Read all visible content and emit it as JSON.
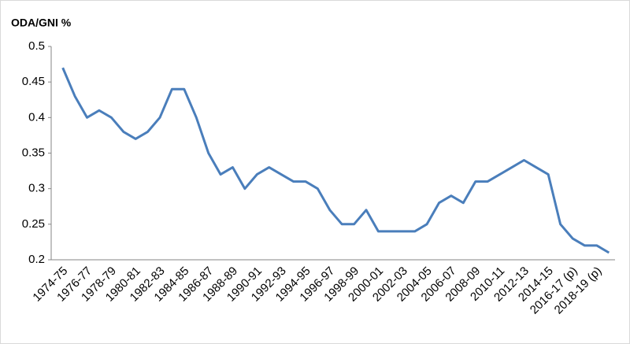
{
  "chart_data": {
    "type": "line",
    "title": "ODA/GNI %",
    "categories": [
      "1974-75",
      null,
      "1976-77",
      null,
      "1978-79",
      null,
      "1980-81",
      null,
      "1982-83",
      null,
      "1984-85",
      null,
      "1986-87",
      null,
      "1988-89",
      null,
      "1990-91",
      null,
      "1992-93",
      null,
      "1994-95",
      null,
      "1996-97",
      null,
      "1998-99",
      null,
      "2000-01",
      null,
      "2002-03",
      null,
      "2004-05",
      null,
      "2006-07",
      null,
      "2008-09",
      null,
      "2010-11",
      null,
      "2012-13",
      null,
      "2014-15",
      null,
      "2016-17 (p)",
      null,
      "2018-19 (p)",
      null
    ],
    "values": [
      0.47,
      0.43,
      0.4,
      0.41,
      0.4,
      0.38,
      0.37,
      0.38,
      0.4,
      0.44,
      0.44,
      0.4,
      0.35,
      0.32,
      0.33,
      0.3,
      0.32,
      0.33,
      0.32,
      0.31,
      0.31,
      0.3,
      0.27,
      0.25,
      0.25,
      0.27,
      0.24,
      0.24,
      0.24,
      0.24,
      0.25,
      0.28,
      0.29,
      0.28,
      0.31,
      0.31,
      0.32,
      0.33,
      0.34,
      0.33,
      0.32,
      0.25,
      0.23,
      0.22,
      0.22,
      0.21
    ],
    "color": "#4a7ebb",
    "ylim": [
      0.2,
      0.5
    ],
    "yticks": [
      0.2,
      0.25,
      0.3,
      0.35,
      0.4,
      0.45,
      0.5
    ],
    "grid": false
  }
}
